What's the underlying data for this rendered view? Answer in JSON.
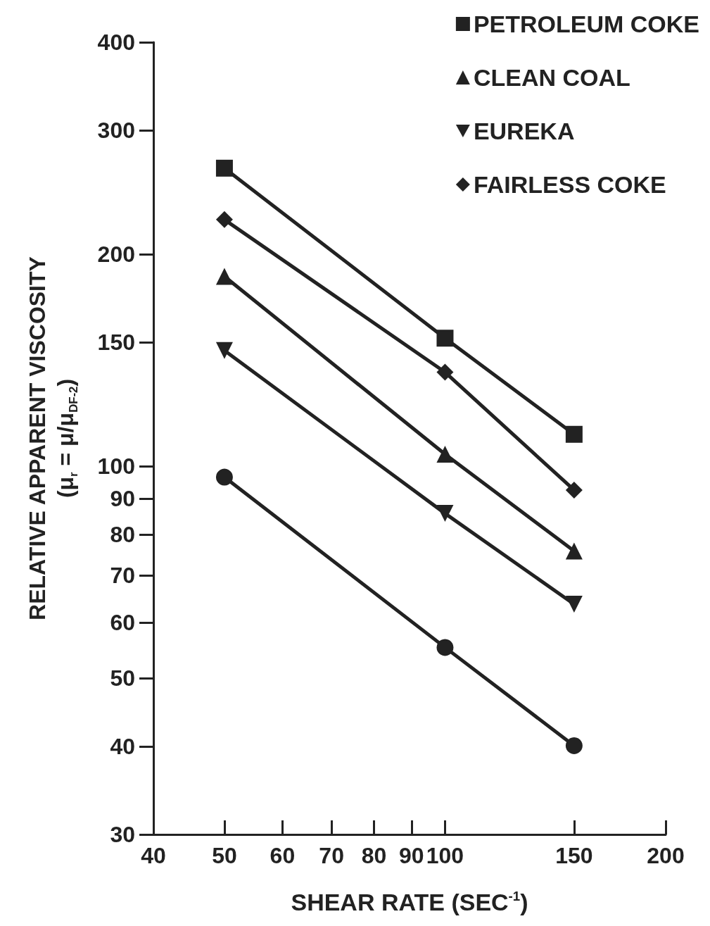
{
  "chart_data": {
    "type": "line",
    "xlabel": "SHEAR RATE (SEC$^{-1}$)",
    "ylabel": "RELATIVE APPARENT VISCOSITY\n(μ$_{r}$ = μ/μ$_{DF-2}$)",
    "x": [
      50,
      100,
      150
    ],
    "series": [
      {
        "color": "#222222",
        "marker": "circle",
        "values": [
          96.5,
          55.3,
          40.1
        ]
      },
      {
        "name": "PETROLEUM COKE",
        "color": "#222222",
        "marker": "square",
        "values": [
          265,
          152,
          111
        ]
      },
      {
        "name": "CLEAN COAL",
        "color": "#222222",
        "marker": "triangle",
        "values": [
          186,
          104,
          75.8
        ]
      },
      {
        "name": "EUREKA",
        "color": "#222222",
        "marker": "triangle-down",
        "values": [
          146,
          85.7,
          63.7
        ]
      },
      {
        "name": "FAIRLESS COKE",
        "color": "#222222",
        "marker": "diamond",
        "values": [
          224,
          136,
          92.5
        ]
      }
    ],
    "log": "xy",
    "xlim": [
      40,
      200
    ],
    "xticks": [
      40,
      50,
      60,
      70,
      80,
      90,
      100,
      150,
      200
    ],
    "ylim": [
      30,
      400
    ],
    "yticks": [
      30,
      40,
      50,
      60,
      70,
      80,
      90,
      100,
      150,
      200,
      300,
      400
    ],
    "grid": false,
    "legend": "top right",
    "line_style": "solid"
  }
}
